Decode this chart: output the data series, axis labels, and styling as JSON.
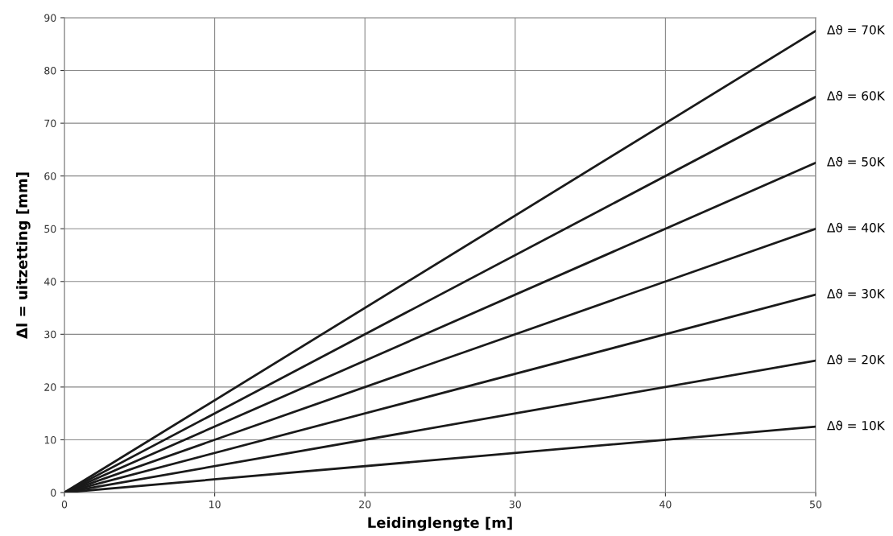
{
  "chart_data": {
    "type": "line",
    "xlabel": "Leidinglengte [m]",
    "ylabel": "Δl = uitzetting [mm]",
    "x": [
      0,
      50
    ],
    "series": [
      {
        "name": "Δϑ = 70K",
        "color": "#1a1a1a",
        "values": [
          0,
          87.5
        ]
      },
      {
        "name": "Δϑ = 60K",
        "color": "#1a1a1a",
        "values": [
          0,
          75
        ]
      },
      {
        "name": "Δϑ = 50K",
        "color": "#1a1a1a",
        "values": [
          0,
          62.5
        ]
      },
      {
        "name": "Δϑ = 40K",
        "color": "#1a1a1a",
        "values": [
          0,
          50
        ]
      },
      {
        "name": "Δϑ = 30K",
        "color": "#1a1a1a",
        "values": [
          0,
          37.5
        ]
      },
      {
        "name": "Δϑ = 20K",
        "color": "#1a1a1a",
        "values": [
          0,
          25
        ]
      },
      {
        "name": "Δϑ = 10K",
        "color": "#1a1a1a",
        "values": [
          0,
          12.5
        ]
      }
    ],
    "xlim": [
      0,
      50
    ],
    "xticks": [
      0,
      10,
      20,
      30,
      40,
      50
    ],
    "ylim": [
      0,
      90
    ],
    "yticks": [
      0,
      10,
      20,
      30,
      40,
      50,
      60,
      70,
      80,
      90
    ],
    "grid": true,
    "line_style": "solid",
    "marker": "none"
  }
}
